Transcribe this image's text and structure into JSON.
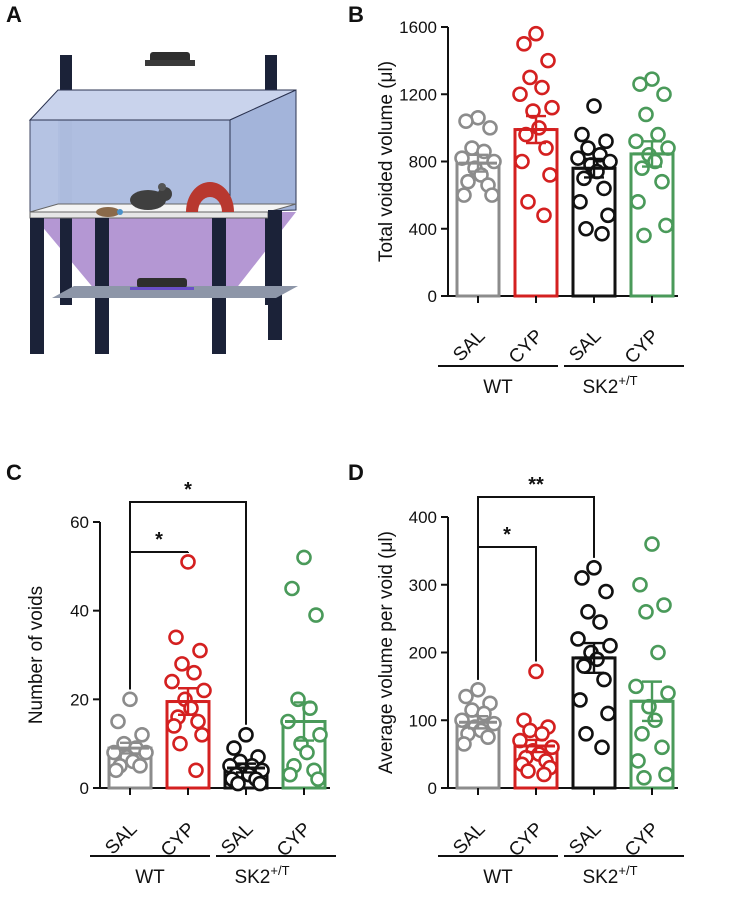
{
  "panels": {
    "A": {
      "letter": "A"
    },
    "B": {
      "letter": "B"
    },
    "C": {
      "letter": "C"
    },
    "D": {
      "letter": "D"
    }
  },
  "colors": {
    "SAL_WT": "#8c8c8c",
    "CYP_WT": "#d42020",
    "SAL_SK2": "#111111",
    "CYP_SK2": "#4a9a5a"
  },
  "categories": [
    "SAL",
    "CYP",
    "SAL",
    "CYP"
  ],
  "groups": [
    "WT",
    "SK2",
    "+/T"
  ],
  "chart_data": [
    {
      "panel": "B",
      "type": "bar",
      "ylabel": "Total voided volume (μl)",
      "ylim": [
        0,
        1600
      ],
      "yticks": [
        0,
        400,
        800,
        1200,
        1600
      ],
      "categories": [
        "SAL",
        "CYP",
        "SAL",
        "CYP"
      ],
      "groups": [
        {
          "label": "WT",
          "categories": [
            0,
            1
          ]
        },
        {
          "label": "SK2+/T",
          "categories": [
            2,
            3
          ]
        }
      ],
      "means": [
        790,
        990,
        760,
        845
      ],
      "sems": [
        50,
        80,
        55,
        75
      ],
      "points": [
        [
          1060,
          1040,
          1000,
          880,
          860,
          820,
          800,
          760,
          720,
          680,
          660,
          600,
          600
        ],
        [
          1560,
          1500,
          1400,
          1300,
          1240,
          1200,
          1120,
          1100,
          1000,
          960,
          880,
          800,
          720,
          560,
          480
        ],
        [
          1130,
          960,
          920,
          880,
          840,
          820,
          800,
          780,
          740,
          700,
          640,
          560,
          480,
          400,
          370
        ],
        [
          1290,
          1260,
          1200,
          1080,
          960,
          920,
          880,
          840,
          800,
          760,
          680,
          560,
          420,
          360
        ]
      ],
      "significance": []
    },
    {
      "panel": "C",
      "type": "bar",
      "ylabel": "Number of voids",
      "ylim": [
        0,
        60
      ],
      "yticks": [
        0,
        20,
        40,
        60
      ],
      "categories": [
        "SAL",
        "CYP",
        "SAL",
        "CYP"
      ],
      "groups": [
        {
          "label": "WT",
          "categories": [
            0,
            1
          ]
        },
        {
          "label": "SK2+/T",
          "categories": [
            2,
            3
          ]
        }
      ],
      "means": [
        9,
        19.5,
        4.5,
        15
      ],
      "sems": [
        1.2,
        3,
        1,
        4.3
      ],
      "points": [
        [
          20,
          15,
          12,
          10,
          9,
          8,
          8,
          7,
          6,
          5,
          5,
          4
        ],
        [
          51,
          34,
          31,
          28,
          26,
          24,
          22,
          20,
          18,
          16,
          15,
          14,
          12,
          10,
          4
        ],
        [
          12,
          9,
          7,
          6,
          5,
          5,
          4,
          4,
          3,
          3,
          2,
          2,
          1,
          1
        ],
        [
          52,
          45,
          39,
          20,
          18,
          15,
          12,
          10,
          8,
          5,
          4,
          3,
          2
        ]
      ],
      "significance": [
        {
          "from": 0,
          "to": 1,
          "label": "*",
          "level": 1
        },
        {
          "from": 0,
          "to": 2,
          "label": "*",
          "level": 2
        }
      ]
    },
    {
      "panel": "D",
      "type": "bar",
      "ylabel": "Average volume per void (μl)",
      "ylim": [
        0,
        400
      ],
      "yticks": [
        0,
        100,
        200,
        300,
        400
      ],
      "categories": [
        "SAL",
        "CYP",
        "SAL",
        "CYP"
      ],
      "groups": [
        {
          "label": "WT",
          "categories": [
            0,
            1
          ]
        },
        {
          "label": "SK2+/T",
          "categories": [
            2,
            3
          ]
        }
      ],
      "means": [
        97,
        62,
        192,
        128
      ],
      "sems": [
        9,
        9,
        22,
        29
      ],
      "points": [
        [
          145,
          135,
          125,
          115,
          110,
          100,
          95,
          90,
          85,
          80,
          75,
          65
        ],
        [
          172,
          100,
          90,
          85,
          80,
          70,
          60,
          55,
          50,
          45,
          40,
          35,
          30,
          25,
          20
        ],
        [
          325,
          310,
          290,
          260,
          245,
          220,
          210,
          200,
          190,
          180,
          160,
          130,
          110,
          80,
          60
        ],
        [
          360,
          300,
          270,
          260,
          200,
          150,
          140,
          120,
          100,
          80,
          60,
          40,
          20,
          15
        ]
      ],
      "significance": [
        {
          "from": 0,
          "to": 1,
          "label": "*",
          "level": 1
        },
        {
          "from": 0,
          "to": 2,
          "label": "**",
          "level": 2
        }
      ]
    }
  ]
}
